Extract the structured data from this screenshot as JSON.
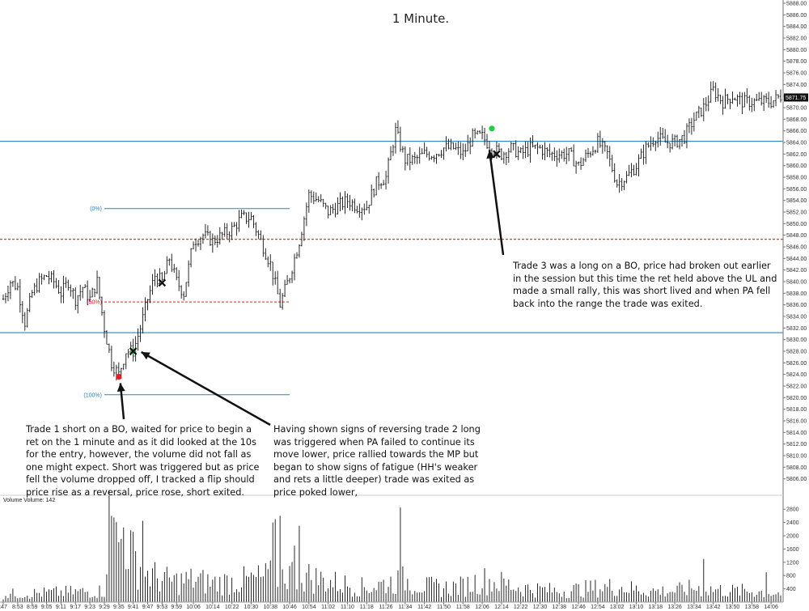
{
  "chart_data": {
    "type": "candlestick",
    "title": "1 Minute.",
    "time_labels": [
      ":47",
      "8:53",
      "8:59",
      "9:05",
      "9:11",
      "9:17",
      "9:23",
      "9:29",
      "9:35",
      "9:41",
      "9:47",
      "9:53",
      "9:59",
      "10:06",
      "10:14",
      "10:22",
      "10:30",
      "10:38",
      "10:46",
      "10:54",
      "11:02",
      "11:10",
      "11:18",
      "11:26",
      "11:34",
      "11:42",
      "11:50",
      "11:58",
      "12:06",
      "12:14",
      "12:22",
      "12:30",
      "12:38",
      "12:46",
      "12:54",
      "13:02",
      "13:10",
      "13:18",
      "13:26",
      "13:34",
      "13:42",
      "13:50",
      "13:58",
      "14:06"
    ],
    "price_axis": {
      "min": 5804,
      "max": 5888,
      "step": 2,
      "labels": [
        "5888.00",
        "5886.00",
        "5884.00",
        "5882.00",
        "5880.00",
        "5878.00",
        "5876.00",
        "5874.00",
        "5872.00",
        "5870.00",
        "5868.00",
        "5866.00",
        "5864.00",
        "5862.00",
        "5860.00",
        "5858.00",
        "5856.00",
        "5854.00",
        "5852.00",
        "5850.00",
        "5848.00",
        "5846.00",
        "5844.00",
        "5842.00",
        "5840.00",
        "5838.00",
        "5836.00",
        "5834.00",
        "5832.00",
        "5830.00",
        "5828.00",
        "5826.00",
        "5824.00",
        "5822.00",
        "5820.00",
        "5818.00",
        "5816.00",
        "5814.00",
        "5812.00",
        "5810.00",
        "5808.00",
        "5806.00"
      ]
    },
    "current_price": "5871.75",
    "volume_axis": {
      "min": 0,
      "max": 3000,
      "labels": [
        "2800",
        "2400",
        "2000",
        "1600",
        "1200",
        "800",
        "400"
      ]
    },
    "volume_label": "Volume  Volume: 142",
    "horizontal_levels": [
      {
        "price": 5864.2,
        "style": "solid",
        "color": "#2e86c1"
      },
      {
        "price": 5831.2,
        "style": "solid",
        "color": "#2e86c1"
      },
      {
        "price": 5847.3,
        "style": "dashed",
        "color": "#e02020"
      }
    ],
    "fib_levels": [
      {
        "label": "(0%)",
        "price": 5852.6,
        "color": "#2e86c1",
        "style": "solid"
      },
      {
        "label": "(50%)",
        "price": 5836.5,
        "color": "#e02020",
        "style": "dashed"
      },
      {
        "label": "(100%)",
        "price": 5820.5,
        "color": "#2e86c1",
        "style": "solid"
      }
    ],
    "markers": [
      {
        "type": "dot",
        "color": "#e02020",
        "time": "9:35",
        "price": 5823.6
      },
      {
        "type": "dot",
        "color": "#22cc44",
        "time": "9:41",
        "price": 5828.0
      },
      {
        "type": "cross",
        "color": "#111111",
        "time": "9:41",
        "price": 5828.0
      },
      {
        "type": "cross",
        "color": "#111111",
        "time": "9:53",
        "price": 5839.8
      },
      {
        "type": "dot",
        "color": "#22cc44",
        "time": "12:10",
        "price": 5866.4
      },
      {
        "type": "cross",
        "color": "#111111",
        "time": "12:12",
        "price": 5862.0
      }
    ],
    "path": [
      [
        "8:47",
        5837
      ],
      [
        "8:50",
        5840
      ],
      [
        "8:53",
        5839
      ],
      [
        "8:56",
        5833
      ],
      [
        "8:59",
        5838
      ],
      [
        "9:02",
        5840
      ],
      [
        "9:05",
        5841
      ],
      [
        "9:08",
        5840
      ],
      [
        "9:11",
        5838
      ],
      [
        "9:14",
        5840
      ],
      [
        "9:17",
        5837
      ],
      [
        "9:20",
        5839
      ],
      [
        "9:23",
        5837
      ],
      [
        "9:26",
        5840
      ],
      [
        "9:29",
        5832
      ],
      [
        "9:32",
        5826
      ],
      [
        "9:35",
        5824
      ],
      [
        "9:38",
        5828
      ],
      [
        "9:41",
        5828
      ],
      [
        "9:44",
        5832
      ],
      [
        "9:47",
        5837
      ],
      [
        "9:50",
        5841
      ],
      [
        "9:53",
        5840
      ],
      [
        "9:56",
        5844
      ],
      [
        "9:59",
        5840
      ],
      [
        "10:02",
        5838
      ],
      [
        "10:06",
        5847
      ],
      [
        "10:10",
        5848
      ],
      [
        "10:14",
        5847
      ],
      [
        "10:18",
        5848
      ],
      [
        "10:22",
        5849
      ],
      [
        "10:26",
        5851
      ],
      [
        "10:30",
        5851
      ],
      [
        "10:34",
        5847
      ],
      [
        "10:38",
        5843
      ],
      [
        "10:42",
        5836
      ],
      [
        "10:46",
        5841
      ],
      [
        "10:50",
        5847
      ],
      [
        "10:54",
        5855
      ],
      [
        "10:58",
        5854
      ],
      [
        "11:02",
        5852
      ],
      [
        "11:06",
        5853
      ],
      [
        "11:10",
        5854
      ],
      [
        "11:14",
        5853
      ],
      [
        "11:18",
        5853
      ],
      [
        "11:22",
        5857
      ],
      [
        "11:26",
        5858
      ],
      [
        "11:30",
        5866
      ],
      [
        "11:34",
        5861
      ],
      [
        "11:38",
        5861
      ],
      [
        "11:42",
        5862
      ],
      [
        "11:46",
        5862
      ],
      [
        "11:50",
        5863
      ],
      [
        "11:54",
        5863
      ],
      [
        "11:58",
        5862
      ],
      [
        "12:02",
        5865
      ],
      [
        "12:06",
        5865
      ],
      [
        "12:10",
        5863
      ],
      [
        "12:14",
        5862
      ],
      [
        "12:18",
        5863
      ],
      [
        "12:22",
        5862
      ],
      [
        "12:26",
        5863
      ],
      [
        "12:30",
        5863
      ],
      [
        "12:34",
        5862
      ],
      [
        "12:38",
        5862
      ],
      [
        "12:42",
        5862
      ],
      [
        "12:46",
        5860
      ],
      [
        "12:50",
        5862
      ],
      [
        "12:54",
        5864
      ],
      [
        "12:58",
        5862
      ],
      [
        "13:02",
        5857
      ],
      [
        "13:06",
        5858
      ],
      [
        "13:10",
        5860
      ],
      [
        "13:14",
        5863
      ],
      [
        "13:18",
        5865
      ],
      [
        "13:22",
        5864
      ],
      [
        "13:26",
        5864
      ],
      [
        "13:30",
        5865
      ],
      [
        "13:34",
        5868
      ],
      [
        "13:38",
        5870
      ],
      [
        "13:42",
        5873
      ],
      [
        "13:46",
        5871
      ],
      [
        "13:50",
        5872
      ],
      [
        "13:54",
        5871
      ],
      [
        "13:58",
        5871
      ],
      [
        "14:02",
        5871
      ],
      [
        "14:06",
        5871
      ],
      [
        "14:10",
        5872
      ]
    ],
    "volume_path": [
      [
        "8:47",
        250
      ],
      [
        "9:29",
        350
      ],
      [
        "9:31",
        2600
      ],
      [
        "9:35",
        1900
      ],
      [
        "9:38",
        2100
      ],
      [
        "9:41",
        1400
      ],
      [
        "9:47",
        900
      ],
      [
        "9:53",
        700
      ],
      [
        "9:59",
        650
      ],
      [
        "10:06",
        700
      ],
      [
        "10:14",
        600
      ],
      [
        "10:22",
        650
      ],
      [
        "10:30",
        700
      ],
      [
        "10:38",
        800
      ],
      [
        "10:46",
        900
      ],
      [
        "10:54",
        800
      ],
      [
        "11:02",
        650
      ],
      [
        "11:10",
        550
      ],
      [
        "11:18",
        450
      ],
      [
        "11:26",
        600
      ],
      [
        "11:34",
        700
      ],
      [
        "11:42",
        500
      ],
      [
        "11:50",
        450
      ],
      [
        "11:58",
        500
      ],
      [
        "12:06",
        700
      ],
      [
        "12:14",
        600
      ],
      [
        "12:22",
        450
      ],
      [
        "12:30",
        400
      ],
      [
        "12:38",
        350
      ],
      [
        "12:46",
        400
      ],
      [
        "12:54",
        450
      ],
      [
        "13:02",
        500
      ],
      [
        "13:10",
        400
      ],
      [
        "13:18",
        350
      ],
      [
        "13:26",
        350
      ],
      [
        "13:34",
        450
      ],
      [
        "13:42",
        400
      ],
      [
        "13:50",
        350
      ],
      [
        "13:58",
        350
      ],
      [
        "14:06",
        300
      ],
      [
        "14:10",
        280
      ]
    ],
    "volume_spikes": [
      [
        "9:32",
        2600
      ],
      [
        "9:33",
        2550
      ],
      [
        "9:37",
        2250
      ],
      [
        "9:45",
        2450
      ],
      [
        "10:39",
        2400
      ],
      [
        "10:40",
        2500
      ],
      [
        "10:42",
        2600
      ],
      [
        "10:48",
        1700
      ],
      [
        "10:50",
        2300
      ],
      [
        "11:32",
        2850
      ],
      [
        "13:38",
        1300
      ],
      [
        "14:04",
        900
      ]
    ]
  },
  "annotations": {
    "trade1": [
      "Trade 1 short on a BO, waited for price to begin a",
      "ret on the 1 minute and as it did looked at the 10s",
      "for the entry, however, the volume did not fall as",
      "one might expect.  Short was triggered but as price",
      "fell the volume dropped off, I tracked a flip should",
      "price rise as a reversal, price rose, short exited."
    ],
    "trade2": [
      "Having shown signs of reversing trade 2 long",
      "was triggered when PA failed to continue its",
      "move lower, price rallied towards the MP but",
      "began to show signs of fatigue (HH's weaker",
      "and rets a little deeper) trade was exited as",
      "price poked lower,"
    ],
    "trade3": [
      "Trade 3 was a long on a BO, price had broken out earlier",
      "in the session but this time the ret held above the UL and",
      "made a small rally, this was short lived and when PA fell",
      "back into the range the trade was exited."
    ]
  }
}
